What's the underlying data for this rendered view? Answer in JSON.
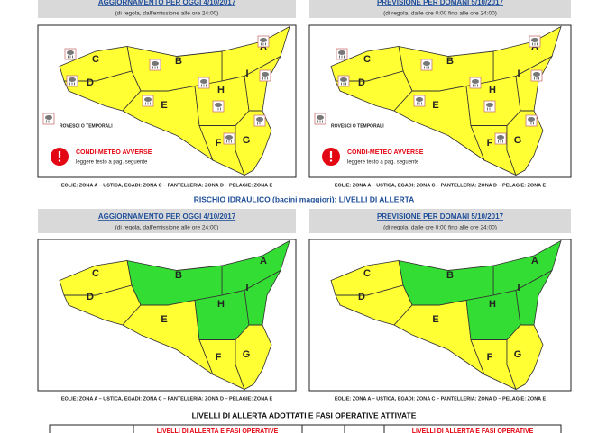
{
  "weather_maps": [
    {
      "title": "AGGIORNAMENTO PER OGGI 4/10/2017",
      "subtitle": "(di regola, dall'emissione alle ore 24:00)",
      "zones": [
        {
          "label": "A",
          "color": "#ffff33"
        },
        {
          "label": "B",
          "color": "#ffff33"
        },
        {
          "label": "C",
          "color": "#ffff33"
        },
        {
          "label": "D",
          "color": "#ffff33"
        },
        {
          "label": "E",
          "color": "#ffff33"
        },
        {
          "label": "F",
          "color": "#ffff33"
        },
        {
          "label": "G",
          "color": "#ffff33"
        },
        {
          "label": "H",
          "color": "#ffff33"
        },
        {
          "label": "I",
          "color": "#ffff33"
        }
      ],
      "legend_storm": "ROVESCI O TEMPORALI",
      "warning_title": "CONDI-METEO AVVERSE",
      "warning_note": "leggere testo a pag. seguente",
      "footer": "EOLIE: ZONA A – USTICA, EGADI: ZONA C – PANTELLERIA: ZONA D – PELAGIE: ZONA E"
    },
    {
      "title": "PREVISIONE PER DOMANI 5/10/2017",
      "subtitle": "(di regola, dalle ore 0:00 fino alle ore 24:00)",
      "zones": [
        {
          "label": "A",
          "color": "#ffff33"
        },
        {
          "label": "B",
          "color": "#ffff33"
        },
        {
          "label": "C",
          "color": "#ffff33"
        },
        {
          "label": "D",
          "color": "#ffff33"
        },
        {
          "label": "E",
          "color": "#ffff33"
        },
        {
          "label": "F",
          "color": "#ffff33"
        },
        {
          "label": "G",
          "color": "#ffff33"
        },
        {
          "label": "H",
          "color": "#ffff33"
        },
        {
          "label": "I",
          "color": "#ffff33"
        }
      ],
      "legend_storm": "ROVESCI O TEMPORALI",
      "warning_title": "CONDI-METEO AVVERSE",
      "warning_note": "leggere testo a pag. seguente",
      "footer": "EOLIE: ZONA A – USTICA, EGADI: ZONA C – PANTELLERIA: ZONA D – PELAGIE: ZONA E"
    }
  ],
  "hydro_title": "RISCHIO IDRAULICO (bacini maggiori): LIVELLI DI ALLERTA",
  "hydro_maps": [
    {
      "title": "AGGIORNAMENTO PER OGGI 4/10/2017",
      "subtitle": "(di regola, dall'emissione alle ore 24:00)",
      "zones": [
        {
          "label": "A",
          "color": "#33dd33"
        },
        {
          "label": "B",
          "color": "#33dd33"
        },
        {
          "label": "C",
          "color": "#ffff33"
        },
        {
          "label": "D",
          "color": "#ffff33"
        },
        {
          "label": "E",
          "color": "#ffff33"
        },
        {
          "label": "F",
          "color": "#ffff33"
        },
        {
          "label": "G",
          "color": "#ffff33"
        },
        {
          "label": "H",
          "color": "#33dd33"
        },
        {
          "label": "I",
          "color": "#33dd33"
        }
      ],
      "footer": "EOLIE: ZONA A – USTICA, EGADI: ZONA C – PANTELLERIA: ZONA D – PELAGIE: ZONA E"
    },
    {
      "title": "PREVISIONE PER DOMANI 5/10/2017",
      "subtitle": "(di regola, dalle ore 0:00 fino alle ore 24:00)",
      "zones": [
        {
          "label": "A",
          "color": "#33dd33"
        },
        {
          "label": "B",
          "color": "#33dd33"
        },
        {
          "label": "C",
          "color": "#ffff33"
        },
        {
          "label": "D",
          "color": "#ffff33"
        },
        {
          "label": "E",
          "color": "#ffff33"
        },
        {
          "label": "F",
          "color": "#ffff33"
        },
        {
          "label": "G",
          "color": "#ffff33"
        },
        {
          "label": "H",
          "color": "#33dd33"
        },
        {
          "label": "I",
          "color": "#33dd33"
        }
      ],
      "footer": "EOLIE: ZONA A – USTICA, EGADI: ZONA C – PANTELLERIA: ZONA D – PELAGIE: ZONA E"
    }
  ],
  "table": {
    "title": "LIVELLI DI ALLERTA ADOTTATI E FASI OPERATIVE ATTIVATE",
    "headers": [
      "LIVELLI DI ALLERTA E FASI OPERATIVE",
      "LIVELLI DI ALLERTA E FASI OPERATIVE"
    ]
  }
}
